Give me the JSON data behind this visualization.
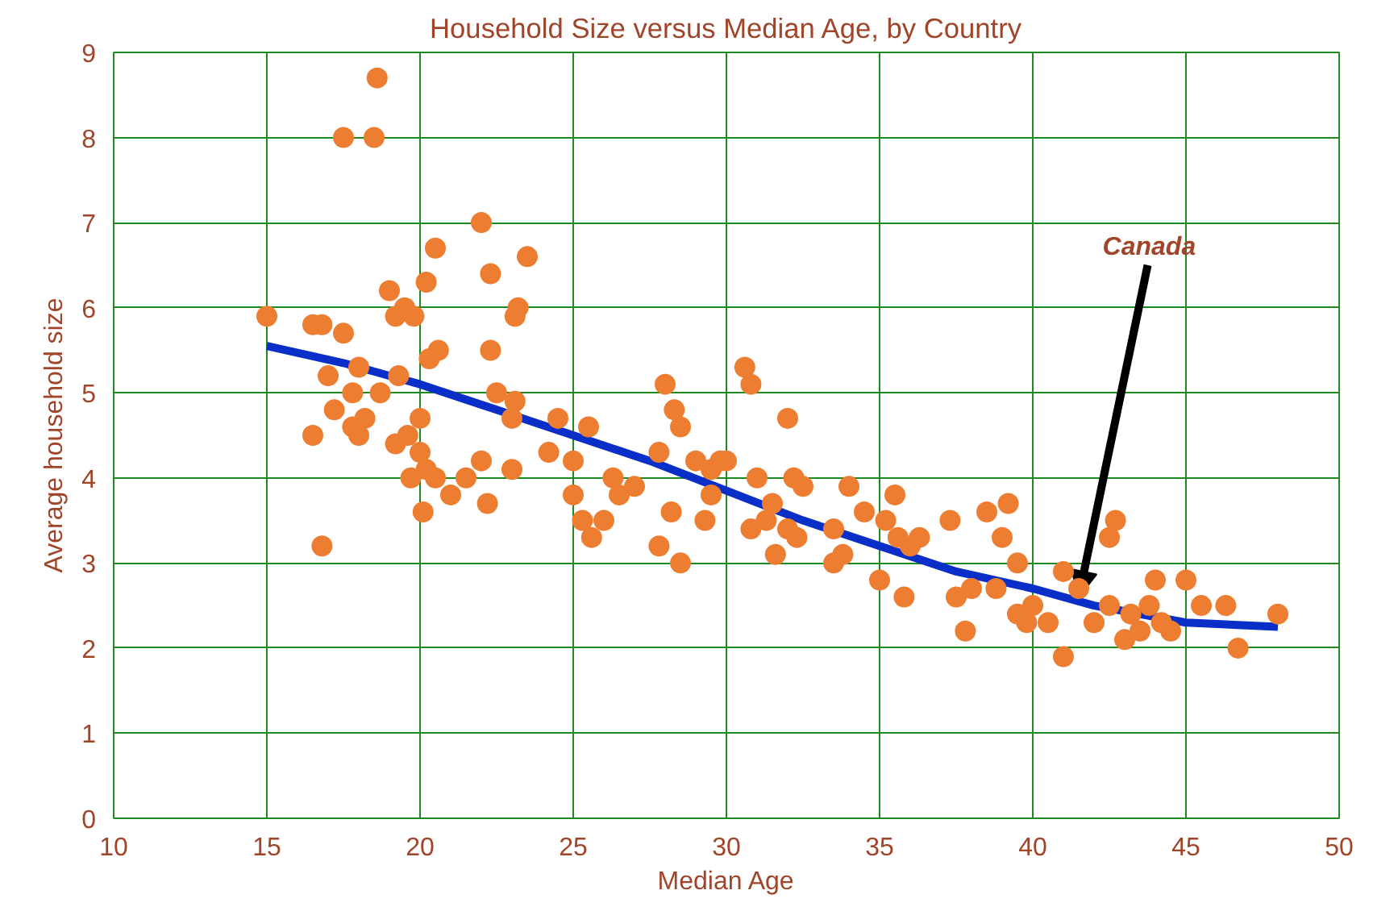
{
  "chart_data": {
    "type": "scatter",
    "title": "Household Size versus Median Age, by Country",
    "xlabel": "Median Age",
    "ylabel": "Average household size",
    "xlim": [
      10,
      50
    ],
    "xticks": [
      10,
      15,
      20,
      25,
      30,
      35,
      40,
      45,
      50
    ],
    "ylim": [
      0,
      9
    ],
    "yticks": [
      0,
      1,
      2,
      3,
      4,
      5,
      6,
      7,
      8,
      9
    ],
    "grid": true,
    "marker": "circle",
    "annotations": [
      {
        "text": "Canada",
        "x": 41.5,
        "y": 2.6
      }
    ],
    "series": [
      {
        "color": "#ed7d31",
        "x": [
          15,
          16.5,
          16.8,
          17.5,
          16.5,
          16.8,
          17,
          17.5,
          18.5,
          18.6,
          17.2,
          17.8,
          17.8,
          18,
          18.2,
          18,
          18.7,
          19,
          19.2,
          19.5,
          19.8,
          19.3,
          19.2,
          19.6,
          20,
          19.7,
          20,
          20.2,
          20.5,
          20.3,
          20.6,
          20.2,
          20.5,
          20.1,
          21,
          21.5,
          22,
          22,
          22.3,
          22.3,
          22.2,
          22.5,
          23.1,
          23.2,
          23.5,
          23.1,
          23,
          23,
          24.5,
          24.2,
          25,
          25.5,
          25.6,
          25.3,
          25,
          26,
          26.3,
          26.5,
          27,
          27.8,
          28,
          28.3,
          28.5,
          28.2,
          28.5,
          27.8,
          29,
          29.5,
          29.8,
          30,
          29.5,
          29.3,
          30.6,
          30.8,
          31,
          30.8,
          31.3,
          31.6,
          31.5,
          32,
          32.2,
          32.5,
          32.3,
          32,
          33.5,
          33.8,
          33.5,
          34,
          34.5,
          35,
          35.2,
          35.5,
          35.6,
          36,
          35.8,
          36.3,
          37.3,
          37.5,
          37.8,
          38,
          38.5,
          38.8,
          39,
          39.2,
          39.5,
          39.8,
          40,
          39.5,
          40.5,
          41,
          41,
          41.5,
          42,
          42.5,
          42.7,
          42.5,
          43,
          43.2,
          43.5,
          44,
          44.5,
          45,
          45.5,
          46.3,
          46.7,
          48,
          43.8,
          44.2
        ],
        "values": [
          5.9,
          5.8,
          5.8,
          5.7,
          4.5,
          3.2,
          5.2,
          8.0,
          8.0,
          8.7,
          4.8,
          5.0,
          4.6,
          4.5,
          4.7,
          5.3,
          5.0,
          6.2,
          5.9,
          6.0,
          5.9,
          5.2,
          4.4,
          4.5,
          4.7,
          4.0,
          4.3,
          6.3,
          6.7,
          5.4,
          5.5,
          4.1,
          4.0,
          3.6,
          3.8,
          4.0,
          4.2,
          7.0,
          6.4,
          5.5,
          3.7,
          5.0,
          5.9,
          6.0,
          6.6,
          4.9,
          4.1,
          4.7,
          4.7,
          4.3,
          4.2,
          4.6,
          3.3,
          3.5,
          3.8,
          3.5,
          4.0,
          3.8,
          3.9,
          4.3,
          5.1,
          4.8,
          4.6,
          3.6,
          3.0,
          3.2,
          4.2,
          4.1,
          4.2,
          4.2,
          3.8,
          3.5,
          5.3,
          5.1,
          4.0,
          3.4,
          3.5,
          3.1,
          3.7,
          4.7,
          4.0,
          3.9,
          3.3,
          3.4,
          3.4,
          3.1,
          3.0,
          3.9,
          3.6,
          2.8,
          3.5,
          3.8,
          3.3,
          3.2,
          2.6,
          3.3,
          3.5,
          2.6,
          2.2,
          2.7,
          3.6,
          2.7,
          3.3,
          3.7,
          3.0,
          2.3,
          2.5,
          2.4,
          2.3,
          1.9,
          2.9,
          2.7,
          2.3,
          3.3,
          3.5,
          2.5,
          2.1,
          2.4,
          2.2,
          2.8,
          2.2,
          2.8,
          2.5,
          2.5,
          2.0,
          2.4,
          2.5,
          2.3
        ]
      },
      {
        "type": "line",
        "color": "#0a2fc8",
        "marker": "none",
        "x": [
          15,
          17.5,
          20,
          22.5,
          25,
          27.5,
          30,
          32.5,
          35,
          37.5,
          40,
          42,
          45,
          48
        ],
        "values": [
          5.55,
          5.35,
          5.1,
          4.8,
          4.5,
          4.2,
          3.85,
          3.5,
          3.2,
          2.9,
          2.7,
          2.5,
          2.3,
          2.25
        ]
      }
    ]
  }
}
